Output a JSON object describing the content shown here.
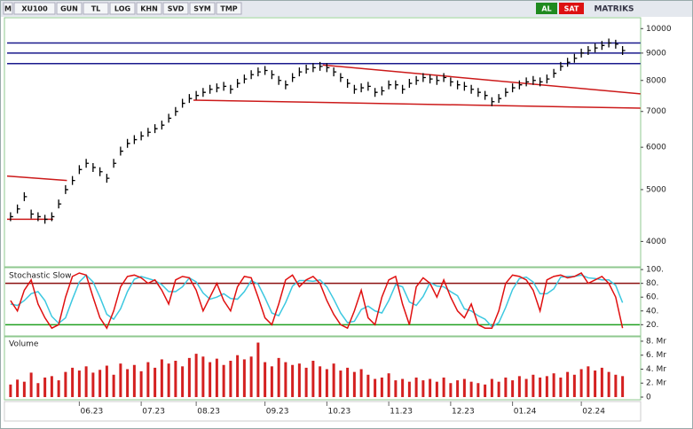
{
  "toolbar": {
    "left": [
      "M",
      "XU100",
      "GUN",
      "TL",
      "LOG",
      "KHN",
      "SVD",
      "SYM",
      "TMP"
    ],
    "buy": "AL",
    "sell": "SAT",
    "brand": "MATRIKS"
  },
  "chart_data": [
    {
      "type": "price-bars",
      "color": "#000000",
      "log": true,
      "categories": [
        null,
        null,
        null,
        null,
        null,
        null,
        null,
        null,
        null,
        null,
        "06.23",
        null,
        null,
        null,
        null,
        null,
        null,
        null,
        null,
        "07.23",
        null,
        null,
        null,
        null,
        null,
        null,
        null,
        "08.23",
        null,
        null,
        null,
        null,
        null,
        null,
        null,
        null,
        null,
        "09.23",
        null,
        null,
        null,
        null,
        null,
        null,
        null,
        null,
        "10.23",
        null,
        null,
        null,
        null,
        null,
        null,
        null,
        null,
        "11.23",
        null,
        null,
        null,
        null,
        null,
        null,
        null,
        null,
        "12.23",
        null,
        null,
        null,
        null,
        null,
        null,
        null,
        null,
        "01.24",
        null,
        null,
        null,
        null,
        null,
        null,
        null,
        null,
        null,
        "02.24",
        null,
        null,
        null,
        null,
        null,
        null
      ],
      "values": [
        4450,
        4600,
        4850,
        4500,
        4450,
        4400,
        4450,
        4700,
        5000,
        5200,
        5450,
        5600,
        5500,
        5400,
        5250,
        5600,
        5900,
        6100,
        6200,
        6300,
        6400,
        6500,
        6600,
        6800,
        7000,
        7250,
        7400,
        7500,
        7600,
        7700,
        7750,
        7800,
        7700,
        7900,
        8050,
        8200,
        8300,
        8350,
        8200,
        8000,
        7850,
        8100,
        8300,
        8400,
        8450,
        8500,
        8450,
        8300,
        8100,
        7900,
        7700,
        7750,
        7800,
        7600,
        7650,
        7850,
        7850,
        7700,
        7900,
        8000,
        8100,
        8050,
        8000,
        8100,
        7950,
        7850,
        7800,
        7700,
        7600,
        7500,
        7300,
        7400,
        7600,
        7750,
        7850,
        7950,
        8000,
        7950,
        8050,
        8250,
        8500,
        8650,
        8800,
        9000,
        9100,
        9200,
        9300,
        9400,
        9350,
        9100
      ],
      "ylim": [
        3600,
        10400
      ],
      "yticks": [
        4000,
        5000,
        6000,
        7000,
        8000,
        9000,
        10000
      ],
      "lines": [
        {
          "from": [
            -0.5,
            9400
          ],
          "to": [
            91.6,
            9400
          ],
          "color": "#1a1a8c"
        },
        {
          "from": [
            -0.5,
            9000
          ],
          "to": [
            91.6,
            9000
          ],
          "color": "#1a1a8c"
        },
        {
          "from": [
            -0.5,
            8600
          ],
          "to": [
            91.6,
            8600
          ],
          "color": "#1a1a8c"
        },
        {
          "from": [
            -0.5,
            5300
          ],
          "to": [
            8.2,
            5200
          ],
          "color": "#cc1a1a"
        },
        {
          "from": [
            -0.5,
            4400
          ],
          "to": [
            6.2,
            4400
          ],
          "color": "#cc1a1a"
        },
        {
          "from": [
            45.4,
            8550
          ],
          "to": [
            91.6,
            7550
          ],
          "color": "#cc1a1a"
        },
        {
          "from": [
            26.6,
            7350
          ],
          "to": [
            91.6,
            7100
          ],
          "color": "#cc1a1a"
        }
      ]
    },
    {
      "type": "line",
      "title": "Stochastic Slow",
      "series": [
        {
          "color": "#e01010",
          "values": [
            55,
            40,
            70,
            85,
            50,
            30,
            15,
            20,
            60,
            90,
            95,
            92,
            60,
            30,
            15,
            40,
            75,
            90,
            92,
            88,
            80,
            85,
            70,
            50,
            85,
            90,
            88,
            70,
            40,
            60,
            80,
            55,
            40,
            75,
            90,
            88,
            60,
            30,
            20,
            50,
            85,
            92,
            75,
            85,
            90,
            80,
            55,
            35,
            20,
            15,
            40,
            70,
            30,
            20,
            60,
            85,
            90,
            50,
            20,
            75,
            88,
            80,
            60,
            85,
            60,
            40,
            30,
            50,
            20,
            15,
            15,
            40,
            80,
            92,
            90,
            85,
            70,
            40,
            85,
            90,
            92,
            88,
            90,
            95,
            80,
            85,
            90,
            80,
            60,
            15
          ]
        },
        {
          "color": "#3cc8e0",
          "values": [
            50,
            48,
            55,
            65,
            68,
            55,
            32,
            22,
            30,
            57,
            82,
            92,
            82,
            60,
            35,
            28,
            43,
            68,
            86,
            90,
            87,
            84,
            78,
            68,
            68,
            75,
            88,
            82,
            66,
            57,
            60,
            65,
            58,
            57,
            68,
            84,
            79,
            59,
            37,
            33,
            52,
            76,
            84,
            84,
            83,
            85,
            75,
            57,
            37,
            23,
            25,
            42,
            47,
            40,
            37,
            55,
            78,
            75,
            53,
            48,
            61,
            81,
            76,
            75,
            68,
            62,
            43,
            40,
            33,
            28,
            17,
            23,
            45,
            71,
            87,
            89,
            82,
            65,
            65,
            72,
            89,
            90,
            90,
            92,
            88,
            87,
            85,
            85,
            77,
            52
          ]
        }
      ],
      "levels": [
        {
          "value": 80,
          "color": "#8b1010"
        },
        {
          "value": 20,
          "color": "#20a020"
        }
      ],
      "ylim": [
        5,
        104
      ],
      "yticks": [
        {
          "value": 20,
          "label": "20."
        },
        {
          "value": 40,
          "label": "40."
        },
        {
          "value": 60,
          "label": "60."
        },
        {
          "value": 80,
          "label": "80."
        },
        {
          "value": 100,
          "label": "100."
        }
      ]
    },
    {
      "type": "bar",
      "title": "Volume",
      "color": "#d42020",
      "values": [
        1.8,
        2.5,
        2.2,
        3.5,
        2.0,
        2.8,
        3.0,
        2.4,
        3.6,
        4.2,
        3.8,
        4.4,
        3.5,
        3.9,
        4.5,
        3.2,
        4.8,
        4.0,
        4.6,
        3.7,
        5.0,
        4.2,
        5.4,
        4.8,
        5.2,
        4.4,
        5.6,
        6.2,
        5.8,
        5.0,
        5.5,
        4.6,
        5.2,
        6.0,
        5.4,
        5.8,
        7.8,
        5.0,
        4.4,
        5.6,
        5.0,
        4.6,
        4.8,
        4.2,
        5.2,
        4.4,
        4.0,
        4.8,
        3.8,
        4.2,
        3.6,
        4.0,
        3.2,
        2.6,
        2.8,
        3.4,
        2.4,
        2.6,
        2.2,
        2.8,
        2.4,
        2.6,
        2.2,
        2.8,
        2.0,
        2.4,
        2.6,
        2.2,
        2.0,
        1.8,
        2.6,
        2.2,
        2.8,
        2.4,
        3.0,
        2.6,
        3.2,
        2.8,
        3.0,
        3.4,
        2.8,
        3.6,
        3.2,
        4.0,
        4.4,
        3.8,
        4.2,
        3.6,
        3.2,
        3.0
      ],
      "ylim": [
        0,
        8.5
      ],
      "yticks": [
        0,
        {
          "value": 2,
          "label": "2. Mr"
        },
        {
          "value": 4,
          "label": "4. Mr"
        },
        {
          "value": 6,
          "label": "6. Mr"
        },
        {
          "value": 8,
          "label": "8. Mr"
        }
      ]
    }
  ]
}
